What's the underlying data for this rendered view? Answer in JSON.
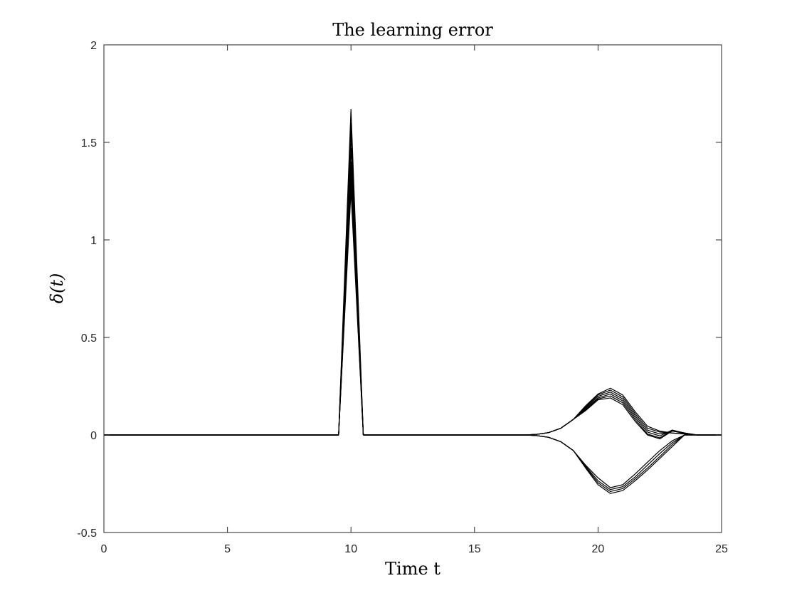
{
  "chart_data": {
    "type": "line",
    "title": "The learning error",
    "xlabel": "Time t",
    "ylabel": "δ(t)",
    "xlim": [
      0,
      25
    ],
    "ylim": [
      -0.5,
      2
    ],
    "xticks": [
      0,
      5,
      10,
      15,
      20,
      25
    ],
    "yticks": [
      -0.5,
      0,
      0.5,
      1,
      1.5,
      2
    ],
    "xtick_labels": [
      "0",
      "5",
      "10",
      "15",
      "20",
      "25"
    ],
    "ytick_labels": [
      "-0.5",
      "0",
      "0.5",
      "1",
      "1.5",
      "2"
    ],
    "grid": false,
    "legend": false,
    "line_color": "#000000",
    "x": [
      0,
      0.5,
      1,
      1.5,
      2,
      2.5,
      3,
      3.5,
      4,
      4.5,
      5,
      5.5,
      6,
      6.5,
      7,
      7.5,
      8,
      8.5,
      9,
      9.5,
      10,
      10.5,
      11,
      11.5,
      12,
      12.5,
      13,
      13.5,
      14,
      14.5,
      15,
      15.5,
      16,
      16.5,
      17,
      17.5,
      18,
      18.5,
      19,
      19.5,
      20,
      20.5,
      21,
      21.5,
      22,
      22.5,
      23,
      23.5,
      24,
      24.5,
      25
    ],
    "series": [
      {
        "values": [
          0,
          0,
          0,
          0,
          0,
          0,
          0,
          0,
          0,
          0,
          0,
          0,
          0,
          0,
          0,
          0,
          0,
          0,
          0,
          0,
          1.67,
          0,
          0,
          0,
          0,
          0,
          0,
          0,
          0,
          0,
          0,
          0,
          0,
          0,
          0,
          0.003,
          0.012,
          0.035,
          0.08,
          0.15,
          0.21,
          0.24,
          0.205,
          0.12,
          0.045,
          0.02,
          0.01,
          0.005,
          0,
          0,
          0
        ]
      },
      {
        "values": [
          0,
          0,
          0,
          0,
          0,
          0,
          0,
          0,
          0,
          0,
          0,
          0,
          0,
          0,
          0,
          0,
          0,
          0,
          0,
          0,
          1.6,
          0,
          0,
          0,
          0,
          0,
          0,
          0,
          0,
          0,
          0,
          0,
          0,
          0,
          0,
          0.003,
          0.012,
          0.035,
          0.08,
          0.145,
          0.205,
          0.23,
          0.195,
          0.11,
          0.035,
          0.015,
          0.01,
          0.005,
          0,
          0,
          0
        ]
      },
      {
        "values": [
          0,
          0,
          0,
          0,
          0,
          0,
          0,
          0,
          0,
          0,
          0,
          0,
          0,
          0,
          0,
          0,
          0,
          0,
          0,
          0,
          1.54,
          0,
          0,
          0,
          0,
          0,
          0,
          0,
          0,
          0,
          0,
          0,
          0,
          0,
          0,
          0.003,
          0.012,
          0.035,
          0.08,
          0.14,
          0.198,
          0.22,
          0.185,
          0.1,
          0.025,
          0.005,
          0.02,
          0.008,
          0,
          0,
          0
        ]
      },
      {
        "values": [
          0,
          0,
          0,
          0,
          0,
          0,
          0,
          0,
          0,
          0,
          0,
          0,
          0,
          0,
          0,
          0,
          0,
          0,
          0,
          0,
          1.47,
          0,
          0,
          0,
          0,
          0,
          0,
          0,
          0,
          0,
          0,
          0,
          0,
          0,
          0,
          0.003,
          0.012,
          0.035,
          0.08,
          0.135,
          0.19,
          0.21,
          0.175,
          0.09,
          0.015,
          -0.005,
          0.025,
          0.01,
          0,
          0,
          0
        ]
      },
      {
        "values": [
          0,
          0,
          0,
          0,
          0,
          0,
          0,
          0,
          0,
          0,
          0,
          0,
          0,
          0,
          0,
          0,
          0,
          0,
          0,
          0,
          1.38,
          0,
          0,
          0,
          0,
          0,
          0,
          0,
          0,
          0,
          0,
          0,
          0,
          0,
          0,
          0.003,
          0.012,
          0.035,
          0.08,
          0.13,
          0.185,
          0.2,
          0.165,
          0.08,
          0.005,
          -0.015,
          0.025,
          0.01,
          0,
          0,
          0
        ]
      },
      {
        "values": [
          0,
          0,
          0,
          0,
          0,
          0,
          0,
          0,
          0,
          0,
          0,
          0,
          0,
          0,
          0,
          0,
          0,
          0,
          0,
          0,
          1.3,
          0,
          0,
          0,
          0,
          0,
          0,
          0,
          0,
          0,
          0,
          0,
          0,
          0,
          0,
          0.003,
          0.012,
          0.035,
          0.08,
          0.125,
          0.18,
          0.19,
          0.155,
          0.07,
          0.0,
          -0.02,
          0.02,
          0.01,
          0,
          0,
          0
        ]
      },
      {
        "values": [
          0,
          0,
          0,
          0,
          0,
          0,
          0,
          0,
          0,
          0,
          0,
          0,
          0,
          0,
          0,
          0,
          0,
          0,
          0,
          0,
          1.25,
          0,
          0,
          0,
          0,
          0,
          0,
          0,
          0,
          0,
          0,
          0,
          0,
          0,
          0,
          -0.003,
          -0.012,
          -0.035,
          -0.08,
          -0.155,
          -0.22,
          -0.27,
          -0.255,
          -0.2,
          -0.14,
          -0.08,
          -0.03,
          0,
          0,
          0,
          0
        ]
      },
      {
        "values": [
          0,
          0,
          0,
          0,
          0,
          0,
          0,
          0,
          0,
          0,
          0,
          0,
          0,
          0,
          0,
          0,
          0,
          0,
          0,
          0,
          1.3,
          0,
          0,
          0,
          0,
          0,
          0,
          0,
          0,
          0,
          0,
          0,
          0,
          0,
          0,
          -0.003,
          -0.012,
          -0.035,
          -0.08,
          -0.16,
          -0.235,
          -0.28,
          -0.265,
          -0.215,
          -0.155,
          -0.095,
          -0.04,
          0,
          0,
          0,
          0
        ]
      },
      {
        "values": [
          0,
          0,
          0,
          0,
          0,
          0,
          0,
          0,
          0,
          0,
          0,
          0,
          0,
          0,
          0,
          0,
          0,
          0,
          0,
          0,
          1.35,
          0,
          0,
          0,
          0,
          0,
          0,
          0,
          0,
          0,
          0,
          0,
          0,
          0,
          0,
          -0.003,
          -0.012,
          -0.035,
          -0.08,
          -0.165,
          -0.245,
          -0.29,
          -0.275,
          -0.225,
          -0.17,
          -0.11,
          -0.05,
          0,
          0,
          0,
          0
        ]
      },
      {
        "values": [
          0,
          0,
          0,
          0,
          0,
          0,
          0,
          0,
          0,
          0,
          0,
          0,
          0,
          0,
          0,
          0,
          0,
          0,
          0,
          0,
          1.4,
          0,
          0,
          0,
          0,
          0,
          0,
          0,
          0,
          0,
          0,
          0,
          0,
          0,
          0,
          -0.003,
          -0.012,
          -0.035,
          -0.08,
          -0.17,
          -0.255,
          -0.3,
          -0.285,
          -0.235,
          -0.18,
          -0.12,
          -0.06,
          0,
          0,
          0,
          0
        ]
      }
    ]
  }
}
